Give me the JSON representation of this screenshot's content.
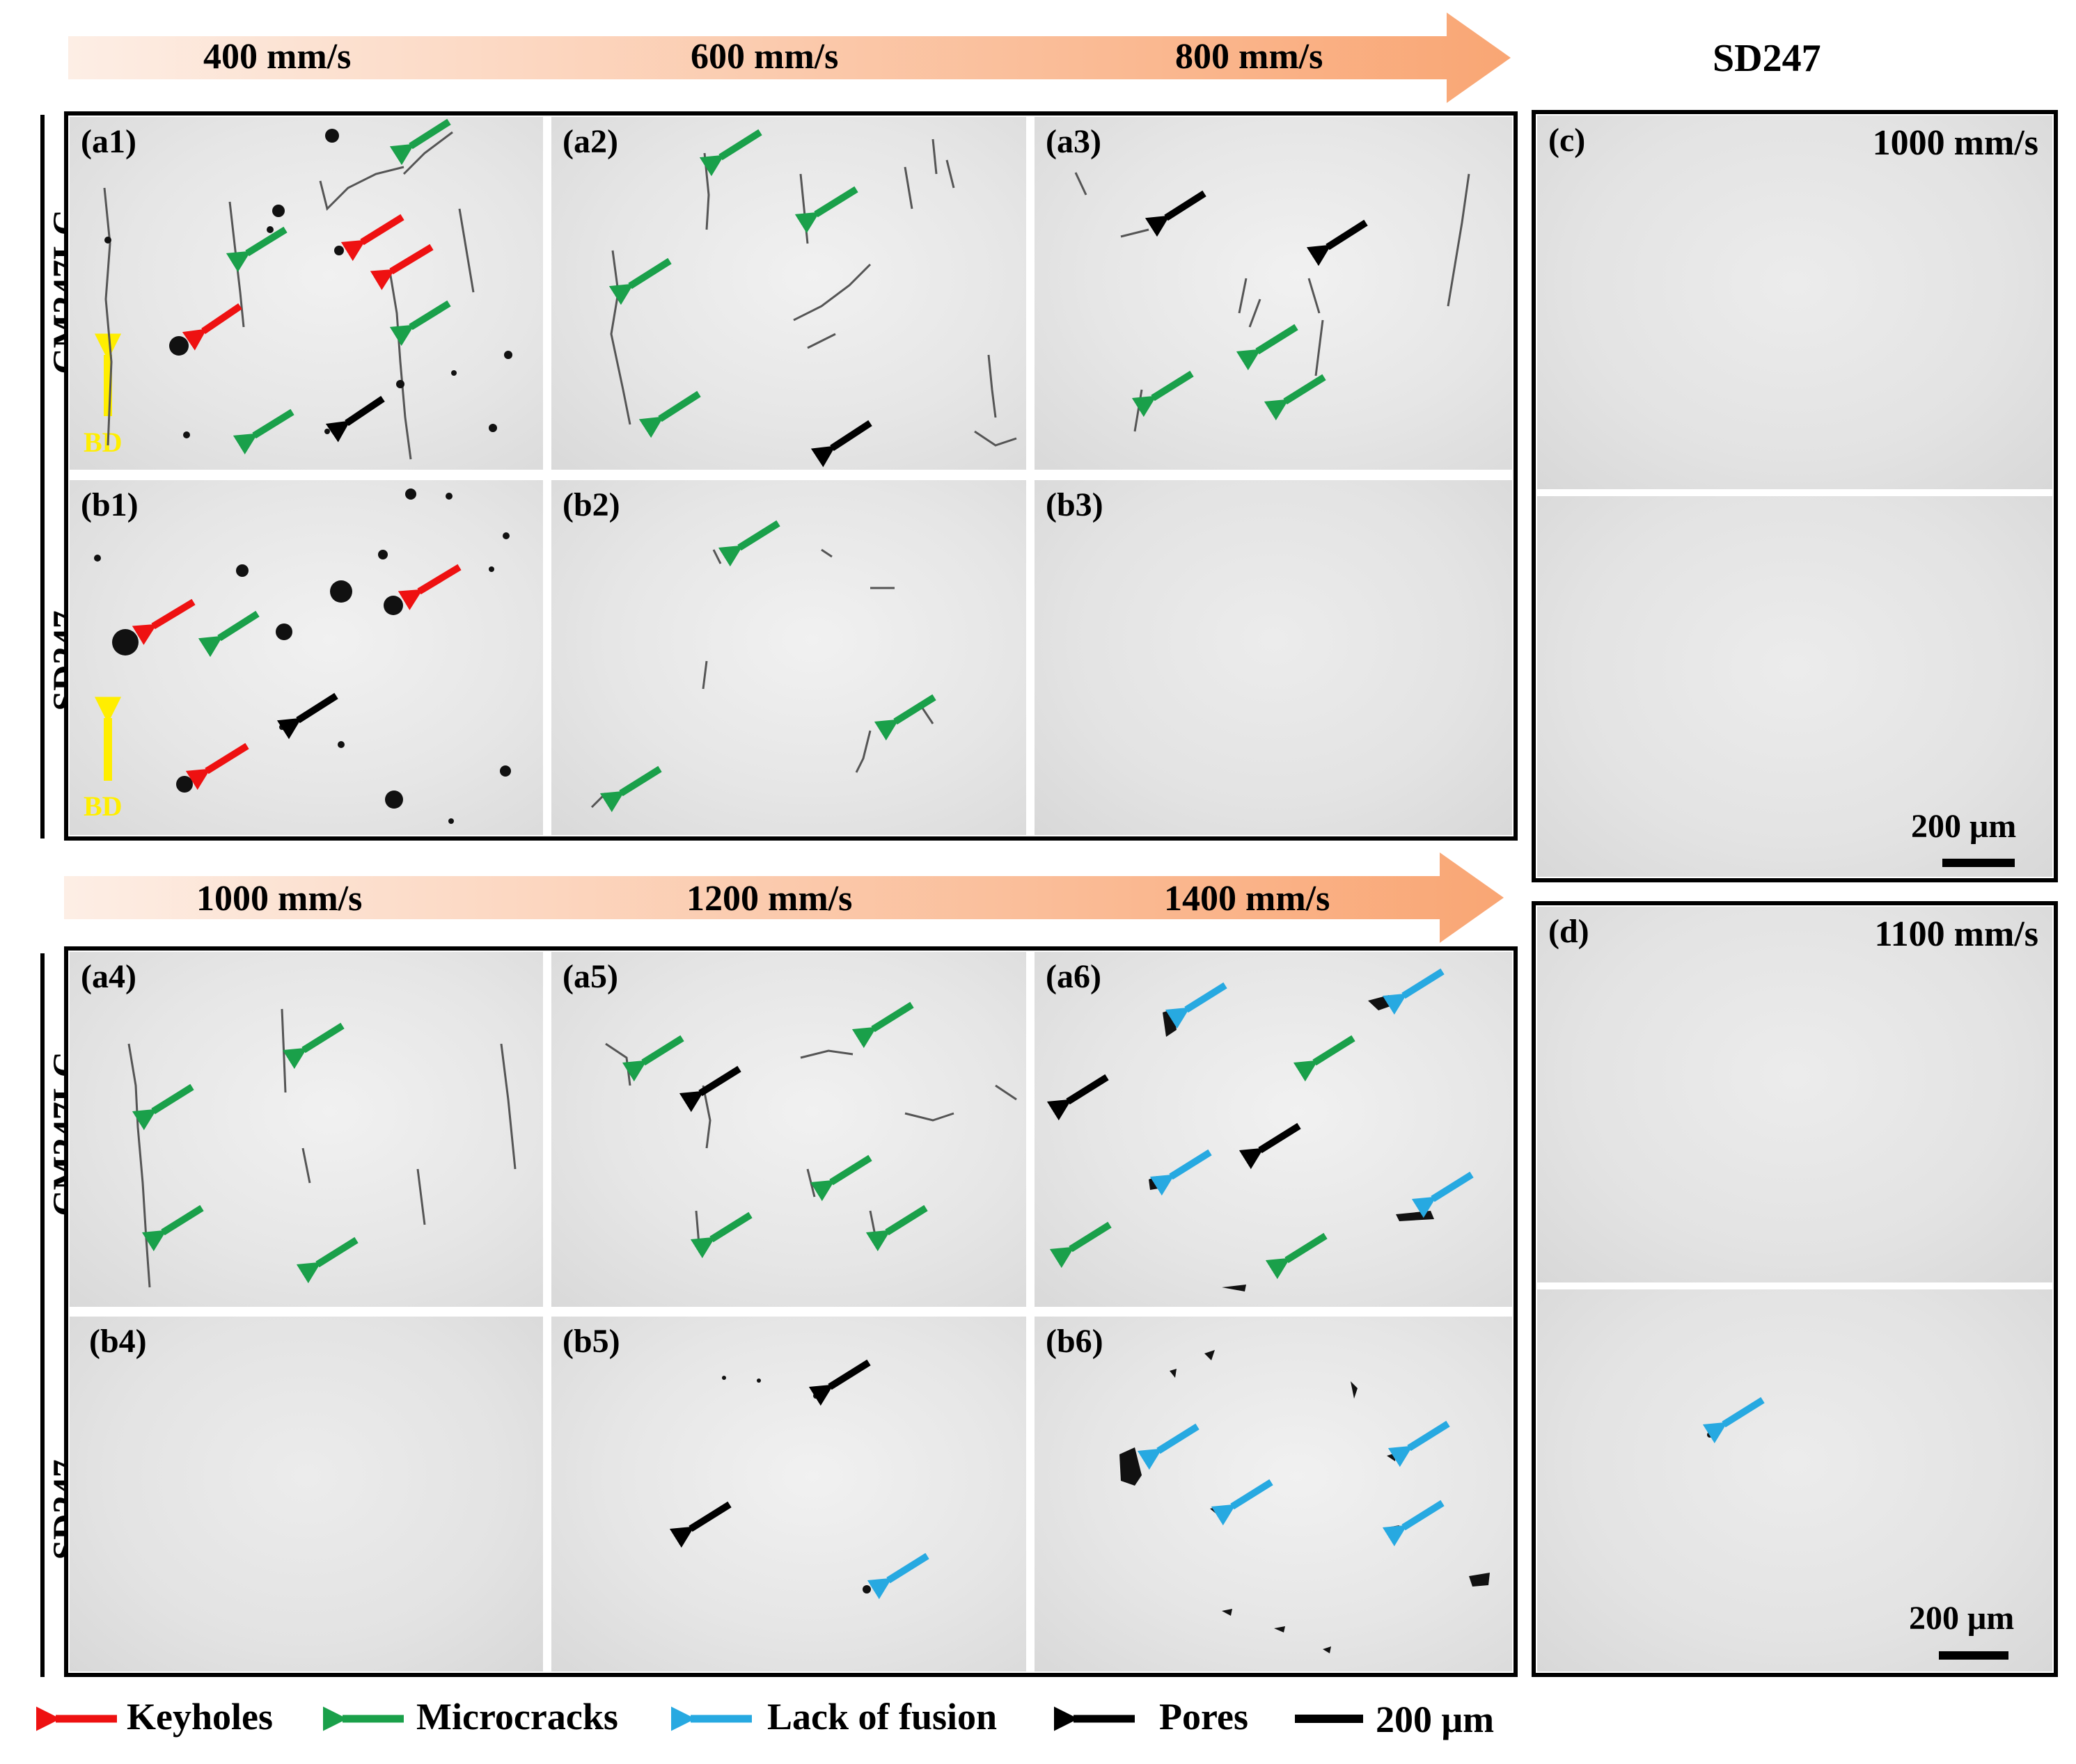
{
  "top_speeds": [
    "400 mm/s",
    "600 mm/s",
    "800 mm/s"
  ],
  "bottom_speeds": [
    "1000 mm/s",
    "1200 mm/s",
    "1400 mm/s"
  ],
  "right_title": "SD247",
  "row_labels": {
    "cm": "CM247LC",
    "sd": "SD247"
  },
  "bd": "BD",
  "panels": {
    "a1": "(a1)",
    "a2": "(a2)",
    "a3": "(a3)",
    "b1": "(b1)",
    "b2": "(b2)",
    "b3": "(b3)",
    "a4": "(a4)",
    "a5": "(a5)",
    "a6": "(a6)",
    "b4": "(b4)",
    "b5": "(b5)",
    "b6": "(b6)",
    "c": "(c)",
    "d": "(d)"
  },
  "c_speed": "1000 mm/s",
  "d_speed": "1100 mm/s",
  "scale": "200 μm",
  "legend": {
    "keyholes": "Keyholes",
    "microcracks": "Microcracks",
    "lack_of_fusion": "Lack of fusion",
    "pores": "Pores",
    "scale": "200 μm"
  },
  "colors": {
    "keyholes": "#ee1111",
    "microcracks": "#1aa04a",
    "lack_of_fusion": "#27a9e1",
    "pores": "#000000",
    "bd_arrow": "#ffee00",
    "speed_arrow_start": "#fdeee5",
    "speed_arrow_end": "#f9a674"
  }
}
